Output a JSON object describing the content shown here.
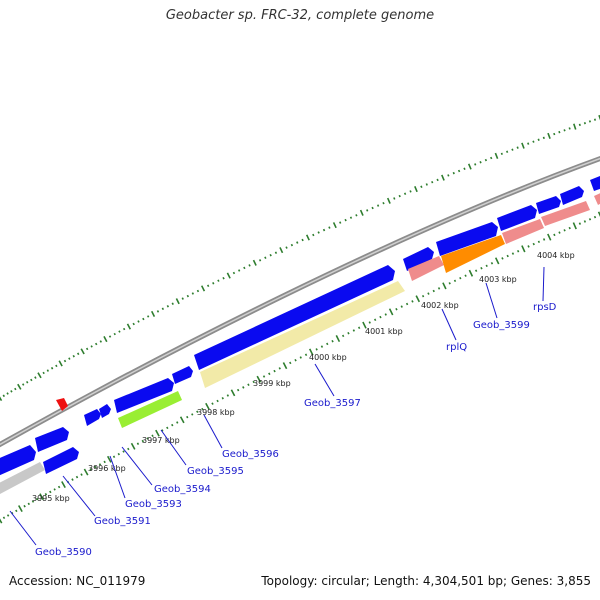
{
  "title": "Geobacter sp. FRC-32, complete genome",
  "footer": {
    "accession": "Accession: NC_011979",
    "summary": "Topology: circular; Length: 4,304,501 bp; Genes: 3,855"
  },
  "colors": {
    "backbone": "#8c8c8c",
    "plus_strand": "#0a0af0",
    "tick": "#2e7d2e",
    "label": "#1a1acc",
    "selection_marker": "#ee1111"
  },
  "ticks": [
    "3995 kbp",
    "3996 kbp",
    "3997 kbp",
    "3998 kbp",
    "3999 kbp",
    "4000 kbp",
    "4001 kbp",
    "4002 kbp",
    "4003 kbp",
    "4004 kbp"
  ],
  "genes": [
    {
      "label": "Geob_3590",
      "color": "#c8c8c8"
    },
    {
      "label": "Geob_3591",
      "color": "#0a0af0"
    },
    {
      "label": "Geob_3593",
      "color": "#0a0af0"
    },
    {
      "label": "Geob_3594",
      "color": "#0a0af0"
    },
    {
      "label": "Geob_3595",
      "color": "#99ee33"
    },
    {
      "label": "Geob_3596",
      "color": "#0a0af0"
    },
    {
      "label": "Geob_3597",
      "color": "#f2eaa8"
    },
    {
      "label": "rplQ",
      "color": "#ef8c8c"
    },
    {
      "label": "Geob_3599",
      "color": "#ff8c00"
    },
    {
      "label": "rpsD",
      "color": "#ef8c8c"
    }
  ]
}
